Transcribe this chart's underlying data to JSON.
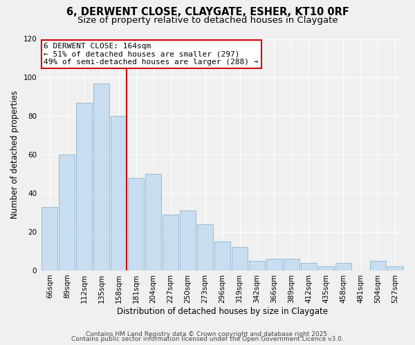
{
  "title": "6, DERWENT CLOSE, CLAYGATE, ESHER, KT10 0RF",
  "subtitle": "Size of property relative to detached houses in Claygate",
  "xlabel": "Distribution of detached houses by size in Claygate",
  "ylabel": "Number of detached properties",
  "categories": [
    "66sqm",
    "89sqm",
    "112sqm",
    "135sqm",
    "158sqm",
    "181sqm",
    "204sqm",
    "227sqm",
    "250sqm",
    "273sqm",
    "296sqm",
    "319sqm",
    "342sqm",
    "366sqm",
    "389sqm",
    "412sqm",
    "435sqm",
    "458sqm",
    "481sqm",
    "504sqm",
    "527sqm"
  ],
  "values": [
    33,
    60,
    87,
    97,
    80,
    48,
    50,
    29,
    31,
    24,
    15,
    12,
    5,
    6,
    6,
    4,
    2,
    4,
    0,
    5,
    2
  ],
  "bar_color": "#c8ddef",
  "bar_edge_color": "#8ab4d4",
  "vline_x_index": 4,
  "vline_color": "#cc0000",
  "annotation_box_text": "6 DERWENT CLOSE: 164sqm\n← 51% of detached houses are smaller (297)\n49% of semi-detached houses are larger (288) →",
  "annotation_box_color": "#cc0000",
  "ylim": [
    0,
    120
  ],
  "yticks": [
    0,
    20,
    40,
    60,
    80,
    100,
    120
  ],
  "footer1": "Contains HM Land Registry data © Crown copyright and database right 2025.",
  "footer2": "Contains public sector information licensed under the Open Government Licence v3.0.",
  "background_color": "#f0f0f0",
  "grid_color": "#ffffff",
  "title_fontsize": 10.5,
  "subtitle_fontsize": 9.5,
  "axis_label_fontsize": 8.5,
  "tick_fontsize": 7.5,
  "annotation_fontsize": 8,
  "footer_fontsize": 6.5
}
